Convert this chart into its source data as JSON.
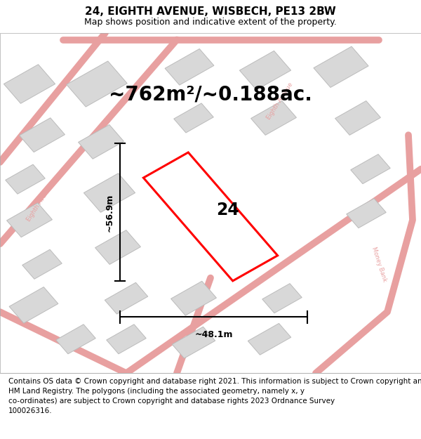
{
  "title": "24, EIGHTH AVENUE, WISBECH, PE13 2BW",
  "subtitle": "Map shows position and indicative extent of the property.",
  "area_text": "~762m²/~0.188ac.",
  "width_label": "~48.1m",
  "height_label": "~56.9m",
  "property_number": "24",
  "footer": "Contains OS data © Crown copyright and database right 2021. This information is subject to Crown copyright and database rights 2023 and is reproduced with the permission of\nHM Land Registry. The polygons (including the associated geometry, namely x, y\nco-ordinates) are subject to Crown copyright and database rights 2023 Ordnance Survey\n100026316.",
  "bg_color": "#f5f5f5",
  "road_color": "#e8a0a0",
  "building_color": "#d8d8d8",
  "building_edge": "#bbbbbb",
  "property_color": "#ff0000",
  "title_fontsize": 11,
  "subtitle_fontsize": 9,
  "area_fontsize": 20,
  "label_fontsize": 9,
  "footer_fontsize": 7.5
}
